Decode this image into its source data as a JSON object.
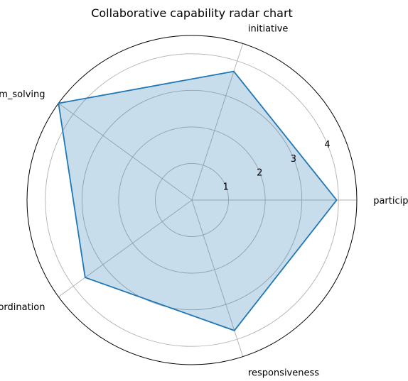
{
  "chart_data": {
    "type": "radar",
    "title": "Collaborative capability radar chart",
    "categories": [
      "participation",
      "initiative",
      "problem_solving",
      "coordination",
      "responsiveness"
    ],
    "series": [
      {
        "values": [
          3.95,
          3.7,
          4.5,
          3.6,
          3.75
        ]
      }
    ],
    "r_ticks": [
      1,
      2,
      3,
      4
    ],
    "r_range": [
      0,
      4.5
    ],
    "grid": true,
    "colors": {
      "line": "#1f77b4",
      "fill": "#1f77b4",
      "grid": "#b0b0b0",
      "frame": "#000000"
    }
  }
}
